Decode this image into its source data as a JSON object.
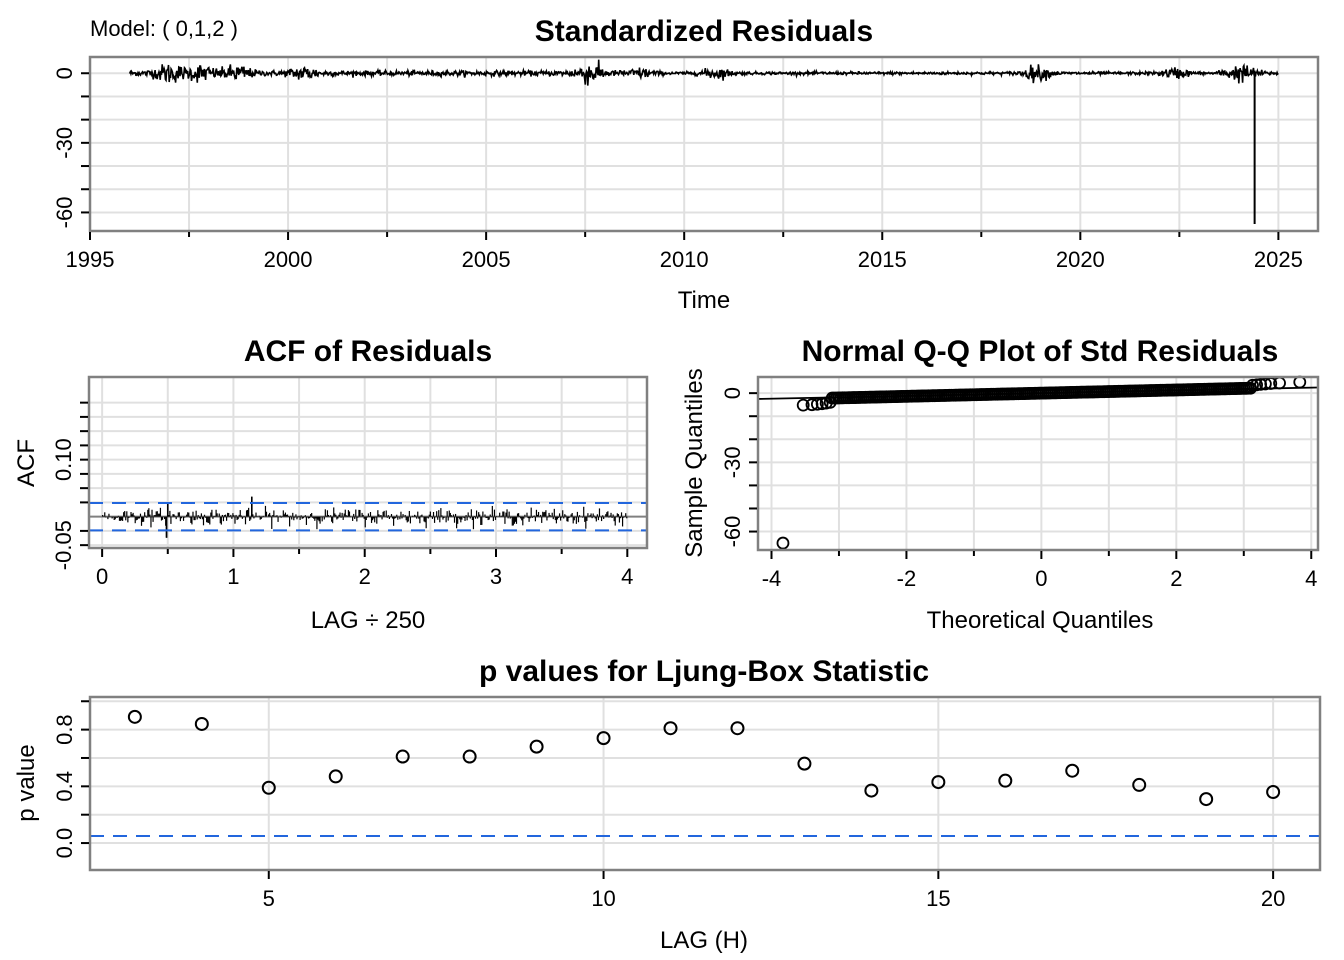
{
  "figure": {
    "model_note": "Model: ( 0,1,2 )",
    "ref_color": "#2266dd",
    "line_color": "#000000"
  },
  "chart_data": [
    {
      "id": "std-residuals",
      "type": "line",
      "title": "Standardized Residuals",
      "xlabel": "Time",
      "ylabel": "",
      "xlim": [
        1995,
        2026
      ],
      "ylim": [
        -68,
        7
      ],
      "xticks": [
        1995,
        2000,
        2005,
        2010,
        2015,
        2020,
        2025
      ],
      "xtick_labels": [
        "1995",
        "2000",
        "2005",
        "2010",
        "2015",
        "2020",
        "2025"
      ],
      "xminor": [
        1997.5,
        2002.5,
        2007.5,
        2012.5,
        2017.5,
        2022.5
      ],
      "yticks": [
        0,
        -30,
        -60
      ],
      "ytick_labels": [
        "0",
        "-30",
        "-60"
      ],
      "yminor": [
        -10,
        -20,
        -40,
        -50
      ],
      "series_range": [
        1996.0,
        2025.0
      ],
      "volatility_bursts": [
        {
          "t": 1997.0,
          "amp": 3.5
        },
        {
          "t": 1997.8,
          "amp": 3.0
        },
        {
          "t": 1998.7,
          "amp": 3.0
        },
        {
          "t": 2000.4,
          "amp": 2.5
        },
        {
          "t": 2007.6,
          "amp": 4.0
        },
        {
          "t": 2008.9,
          "amp": 2.0
        },
        {
          "t": 2010.8,
          "amp": 2.2
        },
        {
          "t": 2018.9,
          "amp": 3.0
        },
        {
          "t": 2022.4,
          "amp": 2.0
        },
        {
          "t": 2023.9,
          "amp": 2.0
        },
        {
          "t": 2024.2,
          "amp": 2.0
        }
      ],
      "outlier": {
        "t": 2024.4,
        "value": -65
      },
      "grid": true
    },
    {
      "id": "acf-residuals",
      "type": "bar",
      "title": "ACF of Residuals",
      "xlabel": "LAG ÷ 250",
      "ylabel": "ACF",
      "xlim": [
        -0.1,
        4.15
      ],
      "ylim": [
        -0.055,
        0.245
      ],
      "xticks": [
        0,
        1,
        2,
        3,
        4
      ],
      "xtick_labels": [
        "0",
        "1",
        "2",
        "3",
        "4"
      ],
      "xminor": [
        0.5,
        1.5,
        2.5,
        3.5
      ],
      "yticks": [
        0.1,
        -0.05
      ],
      "ytick_labels": [
        "0.10",
        "-0.05"
      ],
      "yminor": [
        -0.025,
        0.025,
        0.05,
        0.075,
        0.125,
        0.15,
        0.175,
        0.2
      ],
      "lag_range": [
        0.004,
        4.0
      ],
      "n_lags": 1000,
      "typical_abs": 0.012,
      "notable": [
        {
          "lag": 0.49,
          "value": -0.037
        },
        {
          "lag": 1.14,
          "value": 0.035
        },
        {
          "lag": 0.5,
          "value": 0.024
        }
      ],
      "conf_band": 0.024,
      "grid": true
    },
    {
      "id": "qq-plot",
      "type": "scatter",
      "title": "Normal Q-Q Plot of Std Residuals",
      "xlabel": "Theoretical Quantiles",
      "ylabel": "Sample Quantiles",
      "xlim": [
        -4.2,
        4.1
      ],
      "ylim": [
        -68,
        7
      ],
      "xticks": [
        -4,
        -2,
        0,
        2,
        4
      ],
      "xtick_labels": [
        "-4",
        "-2",
        "0",
        "2",
        "4"
      ],
      "xminor": [
        -3,
        -1,
        1,
        3
      ],
      "yticks": [
        0,
        -30,
        -60
      ],
      "ytick_labels": [
        "0",
        "-30",
        "-60"
      ],
      "yminor": [
        -10,
        -20,
        -40,
        -50
      ],
      "ref_line": {
        "intercept": 0.0,
        "slope": 0.6
      },
      "body_range": [
        -3.1,
        3.1
      ],
      "tail_points": [
        {
          "x": -3.83,
          "y": -65
        },
        {
          "x": -3.53,
          "y": -5.2
        },
        {
          "x": -3.4,
          "y": -5.0
        },
        {
          "x": -3.32,
          "y": -4.8
        },
        {
          "x": -3.25,
          "y": -4.6
        },
        {
          "x": -3.19,
          "y": -4.3
        },
        {
          "x": -3.13,
          "y": -4.0
        },
        {
          "x": 3.13,
          "y": 3.4
        },
        {
          "x": 3.19,
          "y": 3.6
        },
        {
          "x": 3.25,
          "y": 3.8
        },
        {
          "x": 3.32,
          "y": 4.0
        },
        {
          "x": 3.4,
          "y": 4.2
        },
        {
          "x": 3.53,
          "y": 4.4
        },
        {
          "x": 3.83,
          "y": 4.8
        }
      ],
      "grid": true
    },
    {
      "id": "ljung-box",
      "type": "scatter",
      "title": "p values for Ljung-Box Statistic",
      "xlabel": "LAG (H)",
      "ylabel": "p value",
      "xlim": [
        2.33,
        20.7
      ],
      "ylim": [
        -0.19,
        1.03
      ],
      "xticks": [
        5,
        10,
        15,
        20
      ],
      "xtick_labels": [
        "5",
        "10",
        "15",
        "20"
      ],
      "yticks": [
        0.0,
        0.4,
        0.8
      ],
      "ytick_labels": [
        "0.0",
        "0.4",
        "0.8"
      ],
      "yminor": [
        0.2,
        0.6,
        1.0
      ],
      "x": [
        3,
        4,
        5,
        6,
        7,
        8,
        9,
        10,
        11,
        12,
        13,
        14,
        15,
        16,
        17,
        18,
        19,
        20
      ],
      "values": [
        0.89,
        0.84,
        0.39,
        0.47,
        0.61,
        0.61,
        0.68,
        0.74,
        0.81,
        0.81,
        0.56,
        0.37,
        0.43,
        0.44,
        0.51,
        0.41,
        0.31,
        0.36
      ],
      "ref_line": 0.05,
      "grid": true
    }
  ]
}
